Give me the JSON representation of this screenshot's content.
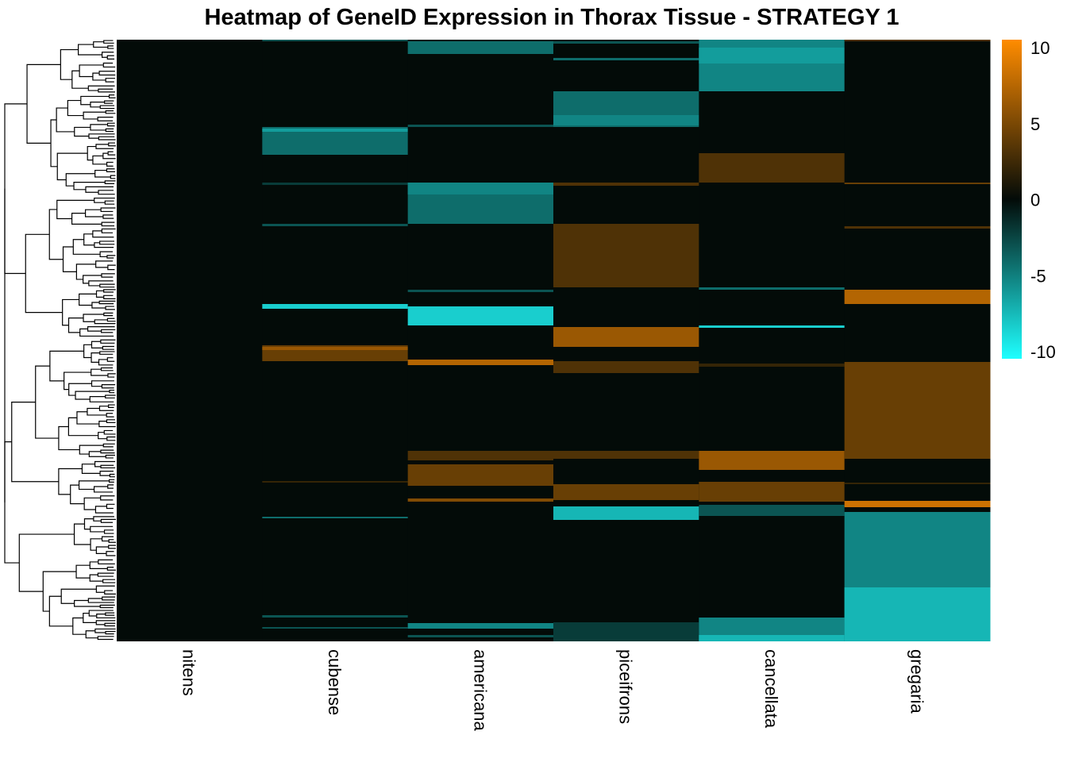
{
  "chart_data": {
    "type": "heatmap",
    "title": "Heatmap of GeneID Expression in Thorax Tissue - STRATEGY 1",
    "columns": [
      "nitens",
      "cubense",
      "americana",
      "piceifrons",
      "cancellata",
      "gregaria"
    ],
    "n_rows": 758,
    "row_dendrogram": true,
    "color_scale": {
      "min": -10,
      "mid": 0,
      "max": 10,
      "low_color": "#1effff",
      "mid_color": "#030b08",
      "high_color": "#ff8c00",
      "ticks": [
        "10",
        "5",
        "0",
        "-5",
        "-10"
      ],
      "tick_values": [
        10,
        5,
        0,
        -5,
        -10
      ]
    },
    "bands_note": "row ranges [start_row, end_row, value]; unlisted rows ~0",
    "bands": {
      "nitens": [],
      "cubense": [
        [
          0,
          2,
          -3
        ],
        [
          110,
          145,
          -4
        ],
        [
          112,
          116,
          -6
        ],
        [
          180,
          183,
          -2
        ],
        [
          232,
          235,
          -3
        ],
        [
          333,
          339,
          -8
        ],
        [
          385,
          405,
          4
        ],
        [
          387,
          391,
          6
        ],
        [
          556,
          558,
          2
        ],
        [
          601,
          603,
          -4
        ],
        [
          725,
          728,
          -3
        ],
        [
          740,
          742,
          -3
        ]
      ],
      "americana": [
        [
          2,
          18,
          -4
        ],
        [
          107,
          110,
          -3
        ],
        [
          180,
          232,
          -4
        ],
        [
          180,
          195,
          -5
        ],
        [
          315,
          318,
          -3
        ],
        [
          336,
          360,
          -8
        ],
        [
          403,
          410,
          7
        ],
        [
          518,
          530,
          3
        ],
        [
          535,
          562,
          4
        ],
        [
          578,
          582,
          5
        ],
        [
          735,
          742,
          -5
        ],
        [
          750,
          753,
          -3
        ]
      ],
      "piceifrons": [
        [
          2,
          5,
          -3
        ],
        [
          23,
          26,
          -4
        ],
        [
          65,
          110,
          -4
        ],
        [
          95,
          108,
          -5
        ],
        [
          180,
          184,
          3
        ],
        [
          232,
          312,
          3
        ],
        [
          362,
          387,
          6
        ],
        [
          405,
          420,
          3
        ],
        [
          518,
          528,
          3
        ],
        [
          560,
          580,
          4
        ],
        [
          588,
          605,
          -7
        ],
        [
          734,
          758,
          -2
        ]
      ],
      "cancellata": [
        [
          0,
          65,
          -5
        ],
        [
          10,
          30,
          -6
        ],
        [
          143,
          180,
          3
        ],
        [
          312,
          315,
          -4
        ],
        [
          360,
          363,
          -8
        ],
        [
          408,
          412,
          2
        ],
        [
          518,
          542,
          6
        ],
        [
          557,
          582,
          4
        ],
        [
          586,
          600,
          -3
        ],
        [
          728,
          758,
          -5
        ],
        [
          750,
          758,
          -7
        ]
      ],
      "gregaria": [
        [
          0,
          2,
          3
        ],
        [
          180,
          182,
          4
        ],
        [
          235,
          238,
          3
        ],
        [
          315,
          333,
          7
        ],
        [
          406,
          528,
          4
        ],
        [
          558,
          560,
          2
        ],
        [
          581,
          589,
          8
        ],
        [
          595,
          758,
          -5
        ],
        [
          690,
          758,
          -7
        ]
      ]
    }
  }
}
